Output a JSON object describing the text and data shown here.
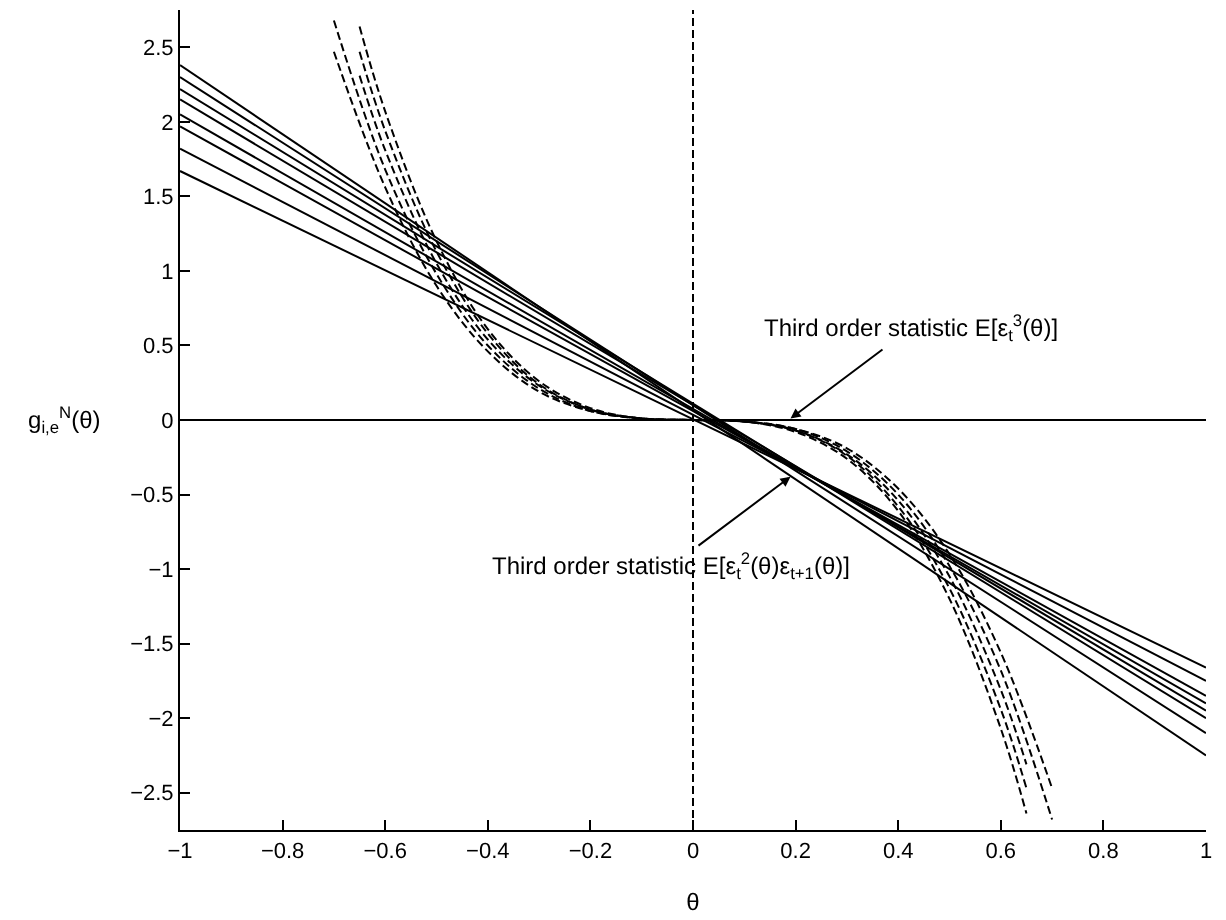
{
  "chart_data": {
    "type": "line",
    "xlabel": "θ",
    "ylabel": "g$_{i,e}$$^{N}$(θ)",
    "xlim": [
      -1,
      1
    ],
    "ylim": [
      -2.75,
      2.75
    ],
    "xticks": [
      -1,
      -0.8,
      -0.6,
      -0.4,
      -0.2,
      0,
      0.2,
      0.4,
      0.6,
      0.8,
      1
    ],
    "yticks": [
      -2.5,
      -2,
      -1.5,
      -1,
      -0.5,
      0,
      0.5,
      1,
      1.5,
      2,
      2.5
    ],
    "marker": "none",
    "series": [
      {
        "color": "#000000",
        "line_style": "solid",
        "x": [
          -1,
          1
        ],
        "values": [
          2.38,
          -2.25
        ]
      },
      {
        "color": "#000000",
        "line_style": "solid",
        "x": [
          -1,
          1
        ],
        "values": [
          2.3,
          -2.1
        ]
      },
      {
        "color": "#000000",
        "line_style": "solid",
        "x": [
          -1,
          1
        ],
        "values": [
          2.22,
          -2.0
        ]
      },
      {
        "color": "#000000",
        "line_style": "solid",
        "x": [
          -1,
          1
        ],
        "values": [
          2.15,
          -1.95
        ]
      },
      {
        "color": "#000000",
        "line_style": "solid",
        "x": [
          -1,
          1
        ],
        "values": [
          2.05,
          -1.9
        ]
      },
      {
        "color": "#000000",
        "line_style": "solid",
        "x": [
          -1,
          1
        ],
        "values": [
          1.97,
          -1.85
        ]
      },
      {
        "color": "#000000",
        "line_style": "solid",
        "x": [
          -1,
          1
        ],
        "values": [
          1.82,
          -1.75
        ]
      },
      {
        "color": "#000000",
        "line_style": "solid",
        "x": [
          -1,
          1
        ],
        "values": [
          1.67,
          -1.66
        ]
      },
      {
        "color": "#000000",
        "line_style": "dashed",
        "x": [
          -0.7,
          -0.6,
          -0.5,
          -0.4,
          -0.3,
          -0.2,
          -0.1,
          0,
          0.1,
          0.2,
          0.3,
          0.4,
          0.5,
          0.6,
          0.7
        ],
        "values": [
          2.47,
          1.56,
          0.9,
          0.46,
          0.19,
          0.06,
          0.01,
          0,
          -0.01,
          -0.06,
          -0.19,
          -0.46,
          -0.9,
          -1.56,
          -2.47
        ]
      },
      {
        "color": "#000000",
        "line_style": "dashed",
        "x": [
          -0.7,
          -0.6,
          -0.5,
          -0.4,
          -0.3,
          -0.2,
          -0.1,
          0,
          0.1,
          0.2,
          0.3,
          0.4,
          0.5,
          0.6,
          0.7
        ],
        "values": [
          2.68,
          1.68,
          0.98,
          0.5,
          0.21,
          0.06,
          0.01,
          0,
          -0.01,
          -0.06,
          -0.21,
          -0.5,
          -0.98,
          -1.68,
          -2.68
        ]
      },
      {
        "color": "#000000",
        "line_style": "dashed",
        "x": [
          -0.65,
          -0.6,
          -0.5,
          -0.4,
          -0.3,
          -0.2,
          -0.1,
          0,
          0.1,
          0.2,
          0.3,
          0.4,
          0.5,
          0.6,
          0.65
        ],
        "values": [
          2.31,
          1.81,
          1.05,
          0.54,
          0.23,
          0.07,
          0.01,
          0,
          -0.01,
          -0.07,
          -0.23,
          -0.54,
          -1.05,
          -1.81,
          -2.31
        ]
      },
      {
        "color": "#000000",
        "line_style": "dashed",
        "x": [
          -0.65,
          -0.6,
          -0.5,
          -0.4,
          -0.3,
          -0.2,
          -0.1,
          0,
          0.1,
          0.2,
          0.3,
          0.4,
          0.5,
          0.6,
          0.65
        ],
        "values": [
          2.47,
          1.94,
          1.13,
          0.58,
          0.24,
          0.07,
          0.01,
          0,
          -0.01,
          -0.07,
          -0.24,
          -0.58,
          -1.13,
          -1.94,
          -2.47
        ]
      },
      {
        "color": "#000000",
        "line_style": "dashed",
        "x": [
          -0.65,
          -0.6,
          -0.5,
          -0.4,
          -0.3,
          -0.2,
          -0.1,
          0,
          0.1,
          0.2,
          0.3,
          0.4,
          0.5,
          0.6,
          0.65
        ],
        "values": [
          2.64,
          2.07,
          1.2,
          0.61,
          0.26,
          0.08,
          0.01,
          0,
          -0.01,
          -0.08,
          -0.26,
          -0.61,
          -1.2,
          -2.07,
          -2.64
        ]
      }
    ],
    "ref_lines": [
      {
        "axis": "x",
        "value": 0,
        "color": "#000000",
        "line_style": "dashed"
      },
      {
        "axis": "y",
        "value": 0,
        "color": "#000000",
        "line_style": "solid"
      }
    ],
    "annotations": [
      {
        "text": "Third order statistic E[ε$_{t}$$^{3}$(θ)]",
        "x": 0.19,
        "y": 0.01
      },
      {
        "text": "Third order statistic E[ε$_{t}$$^{2}$(θ)ε$_{t+1}$(θ)]",
        "x": 0.19,
        "y": -0.38
      }
    ]
  }
}
